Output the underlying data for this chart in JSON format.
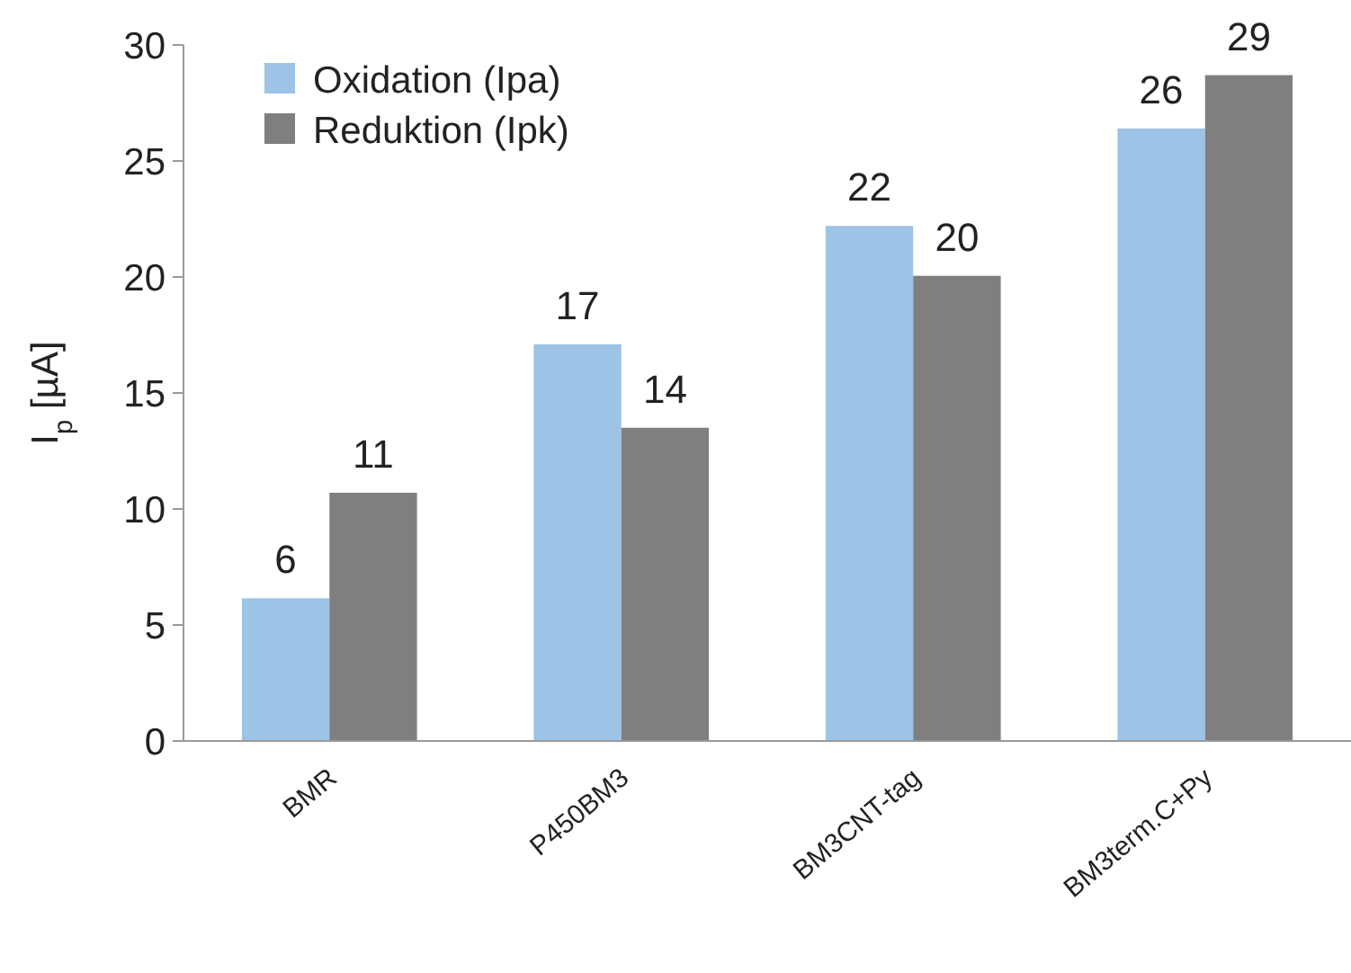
{
  "chart_data": {
    "type": "bar",
    "ylabel": "I$_{p}$ [µA]",
    "categories": [
      "BMR",
      "P450BM3",
      "BM3CNT-tag",
      "BM3term.C+Py"
    ],
    "series": [
      {
        "name": "Oxidation (Ipa)",
        "color": "#9dc3e6",
        "values": [
          6.15,
          17.1,
          22.2,
          26.4
        ],
        "value_labels": [
          "6",
          "17",
          "22",
          "26"
        ]
      },
      {
        "name": "Reduktion (Ipk)",
        "color": "#7f7f7f",
        "values": [
          10.7,
          13.5,
          20.05,
          28.7
        ],
        "value_labels": [
          "11",
          "14",
          "20",
          "29"
        ]
      }
    ],
    "ylim": [
      0,
      30
    ],
    "yticks": [
      0,
      5,
      10,
      15,
      20,
      25,
      30
    ],
    "legend": "top left"
  }
}
